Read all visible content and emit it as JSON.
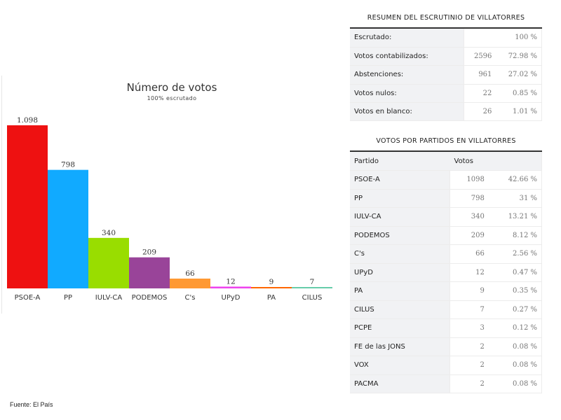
{
  "chart_data": {
    "type": "bar",
    "title": "Número de votos",
    "subtitle": "100% escrutado",
    "categories": [
      "PSOE-A",
      "PP",
      "IULV-CA",
      "PODEMOS",
      "C's",
      "UPyD",
      "PA",
      "CILUS"
    ],
    "values": [
      1098,
      798,
      340,
      209,
      66,
      12,
      9,
      7
    ],
    "value_labels": [
      "1.098",
      "798",
      "340",
      "209",
      "66",
      "12",
      "9",
      "7"
    ],
    "colors": [
      "#ee1111",
      "#11aaff",
      "#99dd00",
      "#994499",
      "#ff9933",
      "#ee44ee",
      "#ff6600",
      "#66ccaa"
    ],
    "ylim": [
      0,
      1098
    ],
    "grid": false,
    "legend": "none"
  },
  "source": "Fuente: El País",
  "summary": {
    "title": "RESUMEN DEL ESCRUTINIO DE VILLATORRES",
    "rows": [
      {
        "label": "Escrutado:",
        "value": "",
        "pct": "100 %"
      },
      {
        "label": "Votos contabilizados:",
        "value": "2596",
        "pct": "72.98 %"
      },
      {
        "label": "Abstenciones:",
        "value": "961",
        "pct": "27.02 %"
      },
      {
        "label": "Votos nulos:",
        "value": "22",
        "pct": "0.85 %"
      },
      {
        "label": "Votos en blanco:",
        "value": "26",
        "pct": "1.01 %"
      }
    ]
  },
  "parties": {
    "title": "VOTOS POR PARTIDOS EN VILLATORRES",
    "header": {
      "party": "Partido",
      "votes": "Votos"
    },
    "rows": [
      {
        "party": "PSOE-A",
        "votes": "1098",
        "pct": "42.66 %"
      },
      {
        "party": "PP",
        "votes": "798",
        "pct": "31 %"
      },
      {
        "party": "IULV-CA",
        "votes": "340",
        "pct": "13.21 %"
      },
      {
        "party": "PODEMOS",
        "votes": "209",
        "pct": "8.12 %"
      },
      {
        "party": "C's",
        "votes": "66",
        "pct": "2.56 %"
      },
      {
        "party": "UPyD",
        "votes": "12",
        "pct": "0.47 %"
      },
      {
        "party": "PA",
        "votes": "9",
        "pct": "0.35 %"
      },
      {
        "party": "CILUS",
        "votes": "7",
        "pct": "0.27 %"
      },
      {
        "party": "PCPE",
        "votes": "3",
        "pct": "0.12 %"
      },
      {
        "party": "FE de las JONS",
        "votes": "2",
        "pct": "0.08 %"
      },
      {
        "party": "VOX",
        "votes": "2",
        "pct": "0.08 %"
      },
      {
        "party": "PACMA",
        "votes": "2",
        "pct": "0.08 %"
      }
    ]
  }
}
